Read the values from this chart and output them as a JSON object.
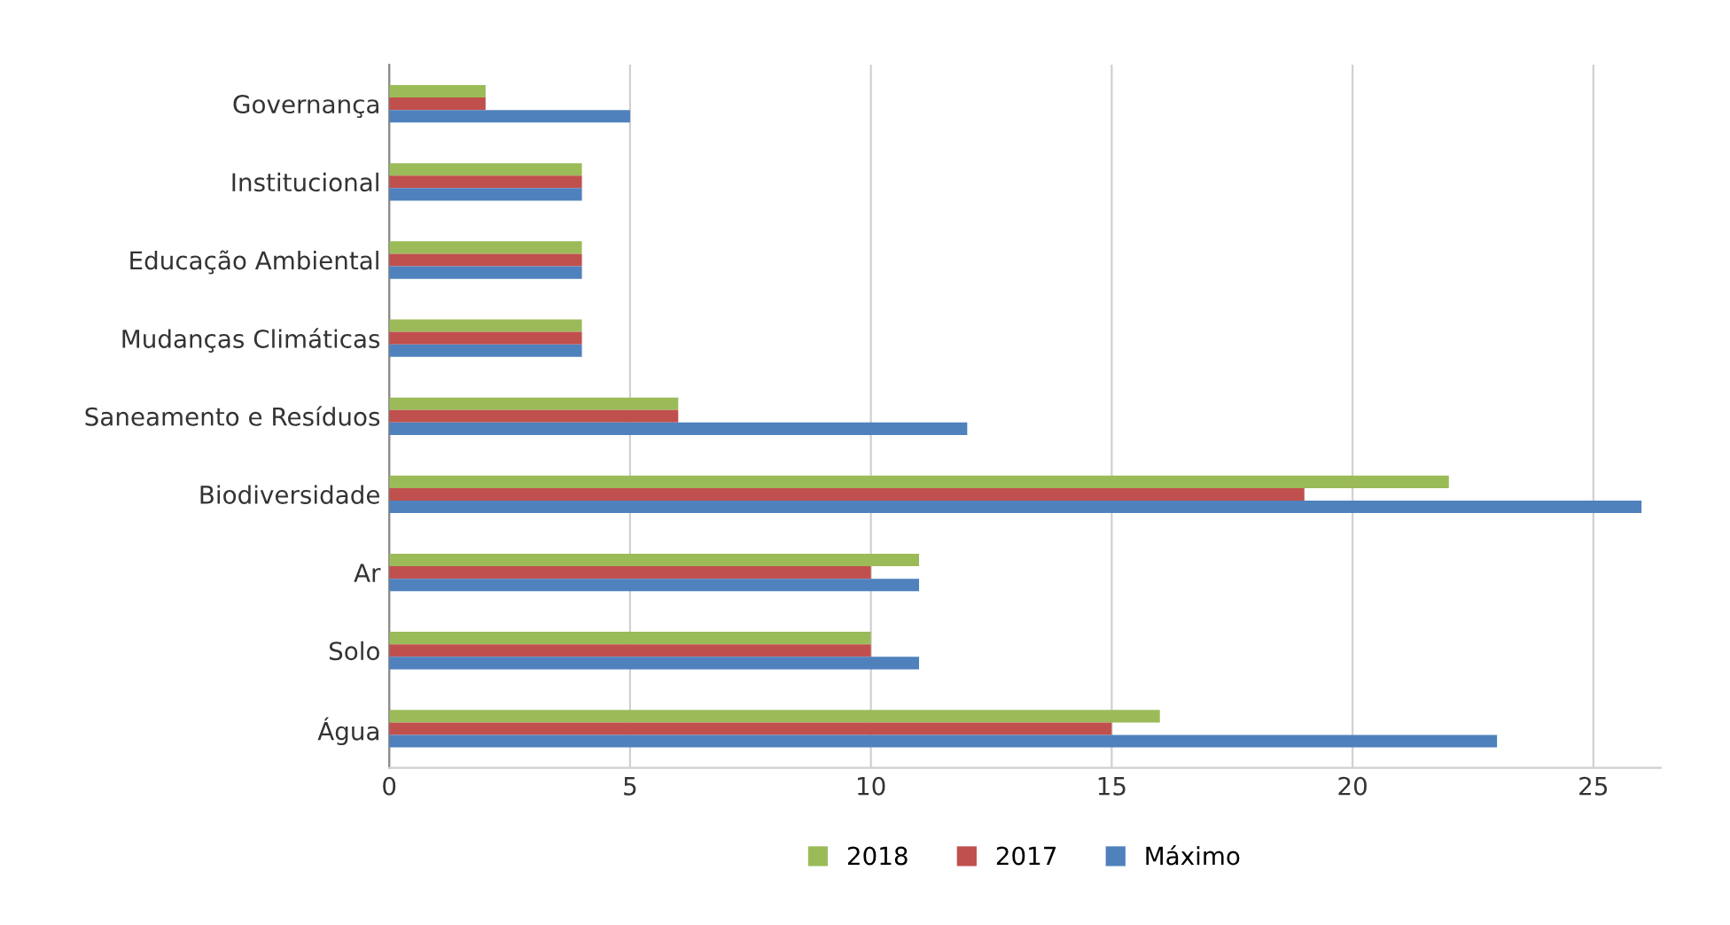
{
  "chart_data": {
    "type": "bar",
    "orientation": "horizontal",
    "categories": [
      "Governança",
      "Institucional",
      "Educação Ambiental",
      "Mudanças Climáticas",
      "Saneamento e Resíduos",
      "Biodiversidade",
      "Ar",
      "Solo",
      "Água"
    ],
    "series": [
      {
        "name": "2018",
        "color": "#9bbb59",
        "values": [
          2,
          4,
          4,
          4,
          6,
          22,
          11,
          10,
          16
        ]
      },
      {
        "name": "2017",
        "color": "#c0504d",
        "values": [
          2,
          4,
          4,
          4,
          6,
          19,
          10,
          10,
          15
        ]
      },
      {
        "name": "Máximo",
        "color": "#4f81bd",
        "values": [
          5,
          4,
          4,
          4,
          12,
          26,
          11,
          11,
          23
        ]
      }
    ],
    "xlim": [
      0,
      26.4
    ],
    "xticks": [
      0,
      5,
      10,
      15,
      20,
      25
    ],
    "grid": "x",
    "legend": "bottom"
  }
}
